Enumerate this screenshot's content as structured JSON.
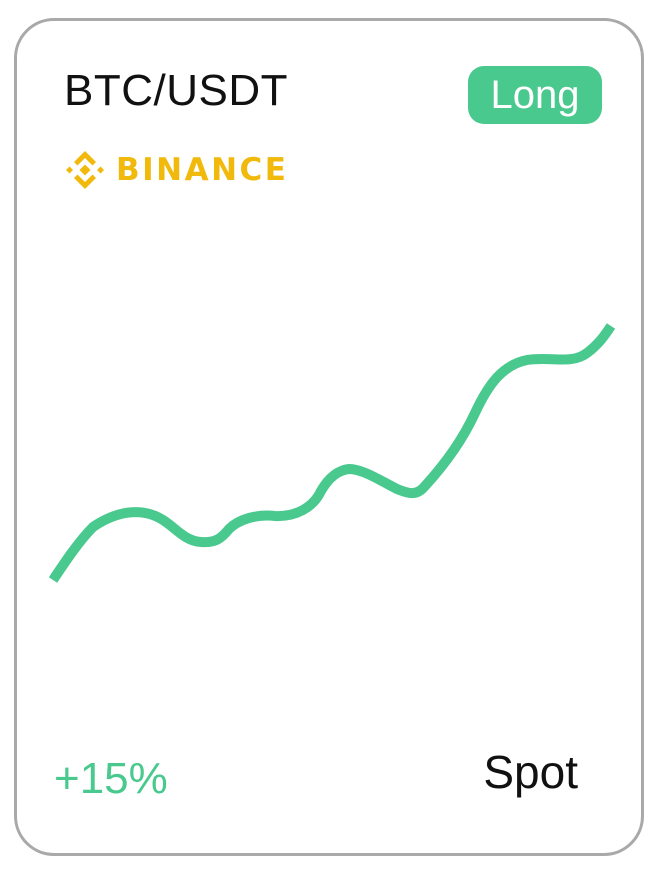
{
  "card": {
    "pair": "BTC/USDT",
    "position_badge": "Long",
    "exchange": "BINANCE",
    "change": "+15%",
    "market_type": "Spot"
  },
  "colors": {
    "accent": "#4ac98e",
    "exchange_brand": "#f0b90b",
    "text": "#111111",
    "border": "#a9a9a9"
  },
  "icons": {
    "exchange_logo": "binance-diamond-logo"
  }
}
